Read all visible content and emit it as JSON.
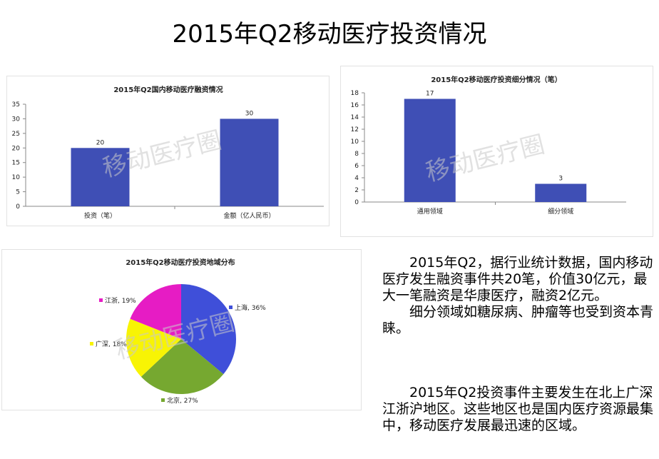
{
  "slide": {
    "title": "2015年Q2移动医疗投资情况"
  },
  "watermark": "移动医疗圈",
  "chart_data": [
    {
      "type": "bar",
      "title": "2015年Q2国内移动医疗融资情况",
      "categories": [
        "投资（笔）",
        "金额（亿人民币）"
      ],
      "values": [
        20,
        30
      ],
      "ylim": [
        0,
        35
      ],
      "yticks": [
        0,
        5,
        10,
        15,
        20,
        25,
        30,
        35
      ],
      "grid": false,
      "color": "#3F4FB5"
    },
    {
      "type": "bar",
      "title": "2015年Q2移动医疗投资细分情况（笔）",
      "categories": [
        "通用领域",
        "细分领域"
      ],
      "values": [
        17,
        3
      ],
      "ylim": [
        0,
        18
      ],
      "yticks": [
        0,
        2,
        4,
        6,
        8,
        10,
        12,
        14,
        16,
        18
      ],
      "grid": false,
      "color": "#3F4FB5"
    },
    {
      "type": "pie",
      "title": "2015年Q2移动医疗投资地域分布",
      "slices": [
        {
          "label": "上海",
          "value": 36,
          "text": "上海, 36%",
          "color": "#3F4FD9"
        },
        {
          "label": "北京",
          "value": 27,
          "text": "北京, 27%",
          "color": "#76A830"
        },
        {
          "label": "广深",
          "value": 18,
          "text": "广深, 18%",
          "color": "#F8F404"
        },
        {
          "label": "江浙",
          "value": 19,
          "text": "江浙, 19%",
          "color": "#E61CC4"
        }
      ]
    }
  ],
  "text": {
    "p1": "2015年Q2，据行业统计数据，国内移动医疗发生融资事件共20笔，价值30亿元，最大一笔融资是华康医疗，融资2亿元。",
    "p2": "细分领域如糖尿病、肿瘤等也受到资本青睐。",
    "p3": "2015年Q2投资事件主要发生在北上广深江浙沪地区。这些地区也是国内医疗资源最集中，移动医疗发展最迅速的区域。"
  }
}
